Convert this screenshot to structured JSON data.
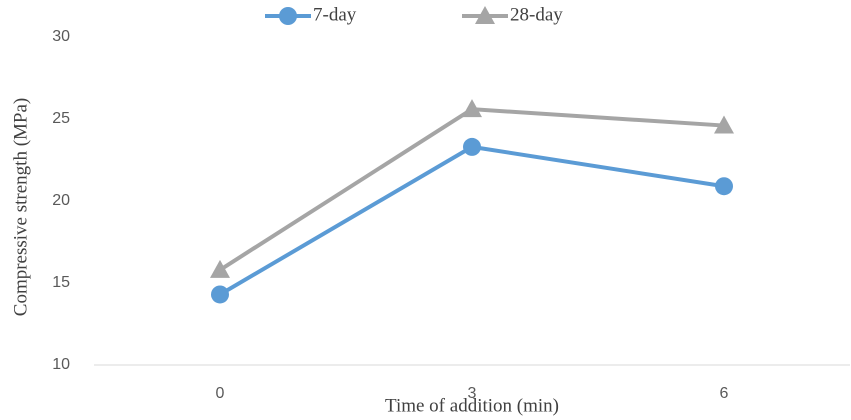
{
  "chart_data": {
    "type": "line",
    "x_label": "Time of addition (min)",
    "y_label": "Compressive strength (MPa)",
    "categories": [
      "0",
      "3",
      "6"
    ],
    "series": [
      {
        "name": "7-day",
        "color": "#5b9bd5",
        "marker": "circle",
        "values": [
          14.3,
          23.3,
          20.9
        ]
      },
      {
        "name": "28-day",
        "color": "#a5a5a5",
        "marker": "triangle",
        "values": [
          15.8,
          25.6,
          24.6
        ]
      }
    ],
    "ylim": [
      10,
      30
    ],
    "yticks": [
      10,
      15,
      20,
      25,
      30
    ],
    "legend": "top"
  }
}
